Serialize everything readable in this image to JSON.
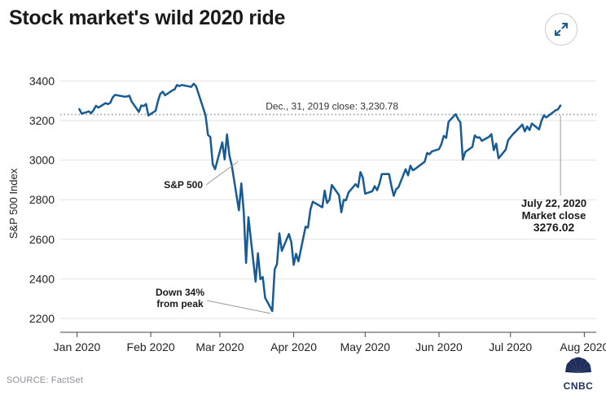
{
  "header": {
    "title": "Stock market's wild 2020 ride",
    "expand_icon": "expand-arrows-icon"
  },
  "footer": {
    "source": "SOURCE: FactSet",
    "logo_text": "CNBC",
    "logo_icon": "peacock-icon"
  },
  "colors": {
    "line": "#165a96",
    "reference_line": "#9a9a9a",
    "grid": "#e2e2e2",
    "text": "#1a1a1a",
    "muted": "#8a8f96"
  },
  "chart_data": {
    "type": "line",
    "title": "Stock market's wild 2020 ride",
    "xlabel": "",
    "ylabel": "S&P 500 Index",
    "ylim": [
      2130,
      3480
    ],
    "xlim": [
      "2019-12-25",
      "2020-08-06"
    ],
    "grid": "horizontal",
    "legend": "none",
    "xticks": [
      {
        "date": "2020-01-01",
        "label": "Jan 2020"
      },
      {
        "date": "2020-02-01",
        "label": "Feb 2020"
      },
      {
        "date": "2020-03-01",
        "label": "Mar 2020"
      },
      {
        "date": "2020-04-01",
        "label": "Apr 2020"
      },
      {
        "date": "2020-05-01",
        "label": "May 2020"
      },
      {
        "date": "2020-06-01",
        "label": "Jun 2020"
      },
      {
        "date": "2020-07-01",
        "label": "Jul 2020"
      },
      {
        "date": "2020-08-01",
        "label": "Aug 2020"
      }
    ],
    "yticks": [
      2200,
      2400,
      2600,
      2800,
      3000,
      3200,
      3400
    ],
    "reference_line": {
      "value": 3230.78,
      "label": "Dec., 31, 2019 close:  3,230.78"
    },
    "series": [
      {
        "name": "S&P 500",
        "x": [
          "2020-01-02",
          "2020-01-03",
          "2020-01-06",
          "2020-01-07",
          "2020-01-08",
          "2020-01-09",
          "2020-01-10",
          "2020-01-13",
          "2020-01-14",
          "2020-01-15",
          "2020-01-16",
          "2020-01-17",
          "2020-01-21",
          "2020-01-22",
          "2020-01-23",
          "2020-01-24",
          "2020-01-27",
          "2020-01-28",
          "2020-01-29",
          "2020-01-30",
          "2020-01-31",
          "2020-02-03",
          "2020-02-04",
          "2020-02-05",
          "2020-02-06",
          "2020-02-07",
          "2020-02-10",
          "2020-02-11",
          "2020-02-12",
          "2020-02-13",
          "2020-02-14",
          "2020-02-18",
          "2020-02-19",
          "2020-02-20",
          "2020-02-21",
          "2020-02-24",
          "2020-02-25",
          "2020-02-26",
          "2020-02-27",
          "2020-02-28",
          "2020-03-02",
          "2020-03-03",
          "2020-03-04",
          "2020-03-05",
          "2020-03-06",
          "2020-03-09",
          "2020-03-10",
          "2020-03-11",
          "2020-03-12",
          "2020-03-13",
          "2020-03-16",
          "2020-03-17",
          "2020-03-18",
          "2020-03-19",
          "2020-03-20",
          "2020-03-23",
          "2020-03-24",
          "2020-03-25",
          "2020-03-26",
          "2020-03-27",
          "2020-03-30",
          "2020-03-31",
          "2020-04-01",
          "2020-04-02",
          "2020-04-03",
          "2020-04-06",
          "2020-04-07",
          "2020-04-08",
          "2020-04-09",
          "2020-04-13",
          "2020-04-14",
          "2020-04-15",
          "2020-04-16",
          "2020-04-17",
          "2020-04-20",
          "2020-04-21",
          "2020-04-22",
          "2020-04-23",
          "2020-04-24",
          "2020-04-27",
          "2020-04-28",
          "2020-04-29",
          "2020-04-30",
          "2020-05-01",
          "2020-05-04",
          "2020-05-05",
          "2020-05-06",
          "2020-05-07",
          "2020-05-08",
          "2020-05-11",
          "2020-05-12",
          "2020-05-13",
          "2020-05-14",
          "2020-05-15",
          "2020-05-18",
          "2020-05-19",
          "2020-05-20",
          "2020-05-21",
          "2020-05-22",
          "2020-05-26",
          "2020-05-27",
          "2020-05-28",
          "2020-05-29",
          "2020-06-01",
          "2020-06-02",
          "2020-06-03",
          "2020-06-04",
          "2020-06-05",
          "2020-06-08",
          "2020-06-09",
          "2020-06-10",
          "2020-06-11",
          "2020-06-12",
          "2020-06-15",
          "2020-06-16",
          "2020-06-17",
          "2020-06-18",
          "2020-06-19",
          "2020-06-22",
          "2020-06-23",
          "2020-06-24",
          "2020-06-25",
          "2020-06-26",
          "2020-06-29",
          "2020-06-30",
          "2020-07-01",
          "2020-07-02",
          "2020-07-06",
          "2020-07-07",
          "2020-07-08",
          "2020-07-09",
          "2020-07-10",
          "2020-07-13",
          "2020-07-14",
          "2020-07-15",
          "2020-07-16",
          "2020-07-17",
          "2020-07-20",
          "2020-07-21",
          "2020-07-22"
        ],
        "values": [
          3257.85,
          3234.85,
          3246.28,
          3237.18,
          3253.05,
          3274.7,
          3265.35,
          3288.13,
          3283.15,
          3289.29,
          3316.81,
          3329.62,
          3320.79,
          3321.75,
          3325.54,
          3295.47,
          3243.63,
          3276.24,
          3273.4,
          3283.66,
          3225.52,
          3248.92,
          3297.59,
          3334.69,
          3345.78,
          3327.71,
          3352.09,
          3357.75,
          3379.45,
          3373.94,
          3380.16,
          3370.29,
          3386.15,
          3373.23,
          3337.75,
          3225.89,
          3128.21,
          3116.39,
          2978.76,
          2954.22,
          3090.23,
          3003.37,
          3130.12,
          3023.94,
          2972.37,
          2746.56,
          2882.23,
          2741.38,
          2480.64,
          2711.02,
          2386.13,
          2529.19,
          2398.1,
          2409.39,
          2304.92,
          2237.4,
          2447.33,
          2475.56,
          2630.07,
          2541.47,
          2626.65,
          2584.59,
          2470.5,
          2526.9,
          2488.65,
          2663.68,
          2659.41,
          2749.98,
          2789.82,
          2761.63,
          2846.06,
          2783.36,
          2799.55,
          2874.56,
          2823.16,
          2736.56,
          2799.31,
          2797.8,
          2836.74,
          2878.48,
          2863.39,
          2939.51,
          2912.43,
          2830.71,
          2842.74,
          2868.44,
          2848.42,
          2881.19,
          2929.8,
          2930.32,
          2870.12,
          2820.0,
          2852.5,
          2863.7,
          2953.91,
          2922.94,
          2971.61,
          2948.51,
          2955.45,
          2991.77,
          3036.13,
          3029.73,
          3044.31,
          3055.73,
          3080.82,
          3122.87,
          3112.35,
          3193.93,
          3232.39,
          3207.18,
          3190.14,
          3002.1,
          3041.31,
          3066.59,
          3124.74,
          3113.49,
          3115.34,
          3097.74,
          3117.86,
          3131.29,
          3050.33,
          3083.76,
          3009.05,
          3053.24,
          3100.29,
          3115.86,
          3130.01,
          3179.72,
          3145.32,
          3169.94,
          3152.05,
          3185.04,
          3155.22,
          3197.52,
          3226.56,
          3215.57,
          3224.73,
          3251.84,
          3257.3,
          3276.02
        ]
      }
    ],
    "annotations": [
      {
        "text": "S&P 500",
        "anchor_date": "2020-03-10",
        "anchor_value": 2882.23
      },
      {
        "text": "Down 34%\nfrom peak",
        "anchor_date": "2020-03-23",
        "anchor_value": 2237.4
      },
      {
        "text": "July 22, 2020\nMarket close\n3276.02",
        "anchor_date": "2020-07-22",
        "anchor_value": 3226.0
      }
    ]
  }
}
